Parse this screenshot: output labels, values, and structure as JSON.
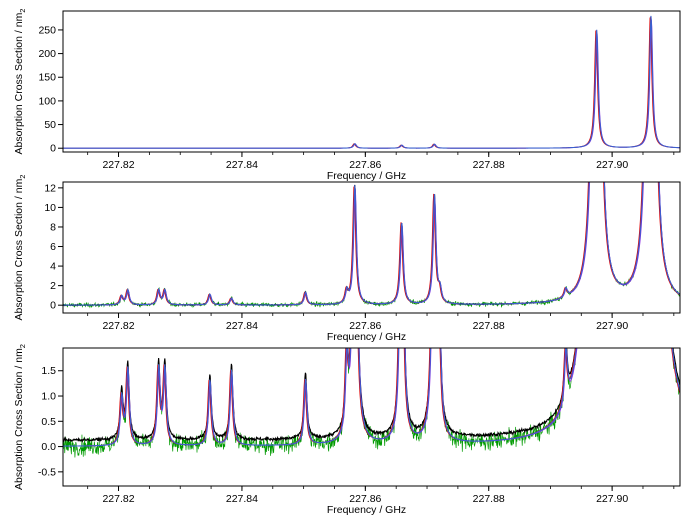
{
  "chart_data": [
    {
      "type": "line",
      "panel": "top",
      "xlabel": "Frequency / GHz",
      "ylabel": "Absorption Cross Section / nm",
      "ylabel_sub": "2",
      "xlim": [
        227.811,
        227.911
      ],
      "ylim": [
        -8,
        290
      ],
      "xticks": [
        "227.82",
        "227.84",
        "227.86",
        "227.88",
        "227.90"
      ],
      "yticks": [
        "0",
        "50",
        "100",
        "150",
        "200",
        "250"
      ],
      "peaks": [
        {
          "x": 227.8583,
          "h": 9.5
        },
        {
          "x": 227.8659,
          "h": 6.5
        },
        {
          "x": 227.8712,
          "h": 8.5
        },
        {
          "x": 227.8975,
          "h": 250
        },
        {
          "x": 227.9063,
          "h": 280
        }
      ],
      "colors": {
        "model": "#3a5fcd",
        "red": "#e00000",
        "purple": "#8a2be2",
        "green": "#009a00",
        "black": "#000000"
      }
    },
    {
      "type": "line",
      "panel": "middle",
      "xlabel": "Frequency / GHz",
      "ylabel": "Absorption Cross Section / nm",
      "ylabel_sub": "2",
      "xlim": [
        227.811,
        227.911
      ],
      "ylim": [
        -0.8,
        12.6
      ],
      "xticks": [
        "227.82",
        "227.84",
        "227.86",
        "227.88",
        "227.90"
      ],
      "yticks": [
        "0",
        "2",
        "4",
        "6",
        "8",
        "10",
        "12"
      ],
      "peaks": [
        {
          "x": 227.8205,
          "h": 0.9
        },
        {
          "x": 227.8215,
          "h": 1.5
        },
        {
          "x": 227.8265,
          "h": 1.5
        },
        {
          "x": 227.8275,
          "h": 1.5
        },
        {
          "x": 227.8348,
          "h": 1.1
        },
        {
          "x": 227.8383,
          "h": 0.7
        },
        {
          "x": 227.8503,
          "h": 1.3
        },
        {
          "x": 227.857,
          "h": 1.3
        },
        {
          "x": 227.8583,
          "h": 12.2
        },
        {
          "x": 227.8659,
          "h": 8.4
        },
        {
          "x": 227.8712,
          "h": 11.2
        },
        {
          "x": 227.8721,
          "h": 1.3
        },
        {
          "x": 227.8925,
          "h": 0.9
        },
        {
          "x": 227.8975,
          "h": 250
        },
        {
          "x": 227.9063,
          "h": 280
        }
      ],
      "noise": 0.35,
      "colors": {
        "model": "#3a5fcd",
        "red": "#e00000",
        "purple": "#8a2be2",
        "green": "#009a00",
        "black": "#000000"
      }
    },
    {
      "type": "line",
      "panel": "bottom",
      "xlabel": "Frequency / GHz",
      "ylabel": "Absorption Cross Section / nm",
      "ylabel_sub": "2",
      "xlim": [
        227.811,
        227.911
      ],
      "ylim": [
        -0.78,
        1.95
      ],
      "xticks": [
        "227.82",
        "227.84",
        "227.86",
        "227.88",
        "227.90"
      ],
      "yticks": [
        "-0.5",
        "0.0",
        "0.5",
        "1.0",
        "1.5"
      ],
      "peaks": [
        {
          "x": 227.8205,
          "h": 0.95
        },
        {
          "x": 227.8215,
          "h": 1.5
        },
        {
          "x": 227.8265,
          "h": 1.5
        },
        {
          "x": 227.8275,
          "h": 1.5
        },
        {
          "x": 227.8348,
          "h": 1.3
        },
        {
          "x": 227.8383,
          "h": 1.5
        },
        {
          "x": 227.8503,
          "h": 1.3
        },
        {
          "x": 227.857,
          "h": 1.5
        },
        {
          "x": 227.8583,
          "h": 12.2
        },
        {
          "x": 227.8659,
          "h": 8.4
        },
        {
          "x": 227.8712,
          "h": 11.2
        },
        {
          "x": 227.8721,
          "h": 1.3
        },
        {
          "x": 227.8925,
          "h": 1.1
        },
        {
          "x": 227.8975,
          "h": 250
        },
        {
          "x": 227.9063,
          "h": 280
        }
      ],
      "noise": 0.28,
      "baseline": 0.12,
      "colors": {
        "model": "#3a5fcd",
        "red": "#e00000",
        "purple": "#8a2be2",
        "green": "#009a00",
        "black": "#000000"
      }
    }
  ]
}
